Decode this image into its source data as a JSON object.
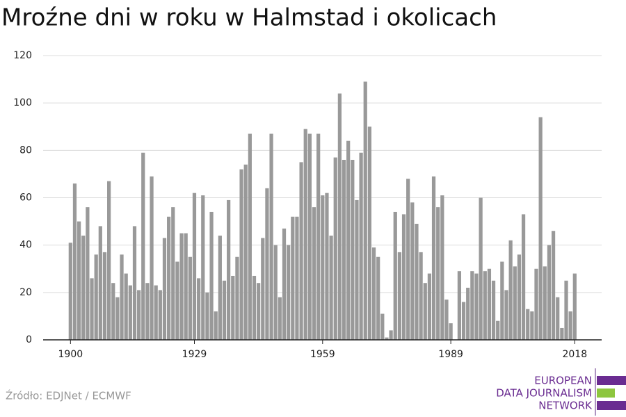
{
  "chart_data": {
    "type": "bar",
    "title": "Mroźne dni w roku w Halmstad i okolicach",
    "source": "Źródło: EDJNet / ECMWF",
    "logo": [
      "EUROPEAN",
      "DATA JOURNALISM",
      "NETWORK"
    ],
    "color": "#999999",
    "grid": true,
    "xlim": [
      1893.6,
      2024.3
    ],
    "xticks": [
      1900,
      1929,
      1959,
      1989,
      2018
    ],
    "ylim": [
      0,
      120
    ],
    "yticks": [
      0,
      20,
      40,
      60,
      80,
      100,
      120
    ],
    "x": [
      1900,
      1901,
      1902,
      1903,
      1904,
      1905,
      1906,
      1907,
      1908,
      1909,
      1910,
      1911,
      1912,
      1913,
      1914,
      1915,
      1916,
      1917,
      1918,
      1919,
      1920,
      1921,
      1922,
      1923,
      1924,
      1925,
      1926,
      1927,
      1928,
      1929,
      1930,
      1931,
      1932,
      1933,
      1934,
      1935,
      1936,
      1937,
      1938,
      1939,
      1940,
      1941,
      1942,
      1943,
      1944,
      1945,
      1946,
      1947,
      1948,
      1949,
      1950,
      1951,
      1952,
      1953,
      1954,
      1955,
      1956,
      1957,
      1958,
      1959,
      1960,
      1961,
      1962,
      1963,
      1964,
      1965,
      1966,
      1967,
      1968,
      1969,
      1970,
      1971,
      1972,
      1973,
      1974,
      1975,
      1976,
      1977,
      1978,
      1979,
      1980,
      1981,
      1982,
      1983,
      1984,
      1985,
      1986,
      1987,
      1988,
      1989,
      1990,
      1991,
      1992,
      1993,
      1994,
      1995,
      1996,
      1997,
      1998,
      1999,
      2000,
      2001,
      2002,
      2003,
      2004,
      2005,
      2006,
      2007,
      2008,
      2009,
      2010,
      2011,
      2012,
      2013,
      2014,
      2015,
      2016,
      2017,
      2018
    ],
    "values": [
      41,
      66,
      50,
      44,
      56,
      26,
      36,
      48,
      37,
      67,
      24,
      18,
      36,
      28,
      23,
      48,
      21,
      79,
      24,
      69,
      23,
      21,
      43,
      52,
      56,
      33,
      45,
      45,
      35,
      62,
      26,
      61,
      20,
      54,
      12,
      44,
      25,
      59,
      27,
      35,
      72,
      74,
      87,
      27,
      24,
      43,
      64,
      87,
      40,
      18,
      47,
      40,
      52,
      52,
      75,
      89,
      87,
      56,
      87,
      61,
      62,
      44,
      77,
      104,
      76,
      84,
      76,
      59,
      79,
      109,
      90,
      39,
      35,
      11,
      1,
      4,
      54,
      37,
      53,
      68,
      58,
      49,
      37,
      24,
      28,
      69,
      56,
      61,
      17,
      7,
      0,
      29,
      16,
      22,
      29,
      28,
      60,
      29,
      30,
      25,
      8,
      33,
      21,
      42,
      31,
      36,
      53,
      13,
      12,
      30,
      94,
      31,
      40,
      46,
      18,
      5,
      25,
      12,
      28
    ]
  }
}
